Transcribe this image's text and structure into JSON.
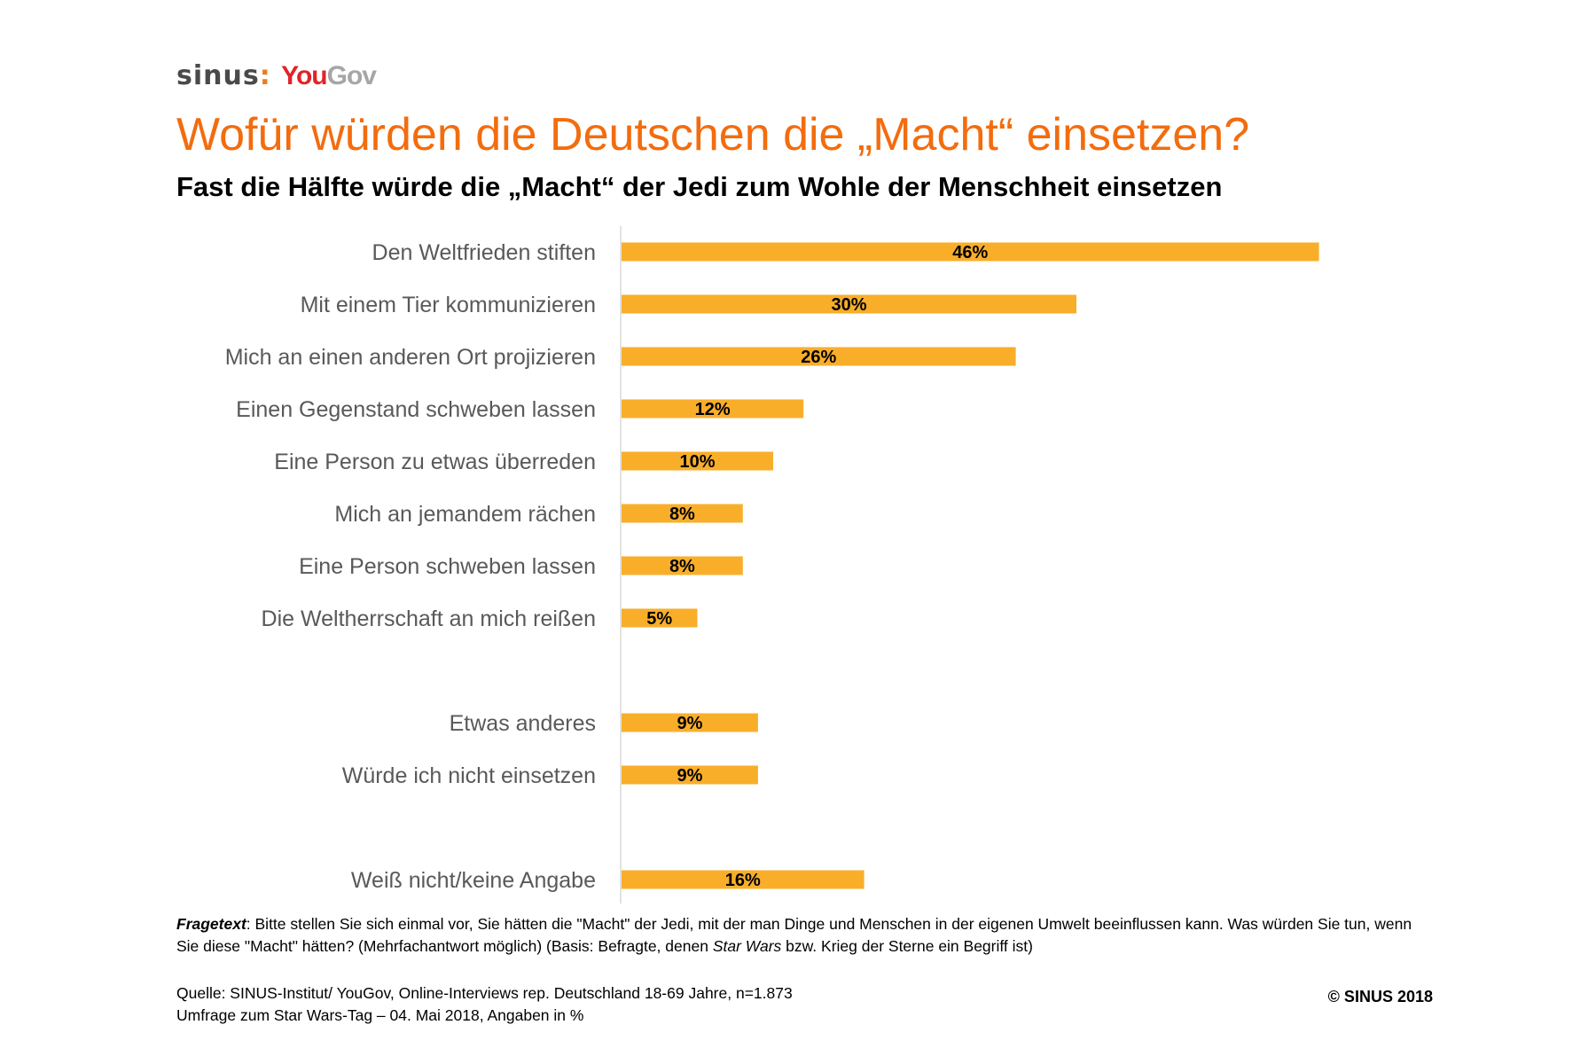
{
  "logo": {
    "sinus": "sinus",
    "you": "You",
    "gov": "Gov"
  },
  "title": "Wofür würden die Deutschen die „Macht“ einsetzen?",
  "subtitle": "Fast die Hälfte würde die „Macht“ der Jedi zum Wohle der Menschheit einsetzen",
  "chart_data": {
    "type": "bar",
    "orientation": "horizontal",
    "categories": [
      "Den Weltfrieden stiften",
      "Mit einem Tier kommunizieren",
      "Mich an einen anderen Ort projizieren",
      "Einen Gegenstand schweben lassen",
      "Eine Person zu etwas überreden",
      "Mich an jemandem rächen",
      "Eine Person schweben lassen",
      "Die Weltherrschaft an mich reißen",
      "Etwas anderes",
      "Würde ich nicht einsetzen",
      "Weiß nicht/keine Angabe"
    ],
    "values": [
      46,
      30,
      26,
      12,
      10,
      8,
      8,
      5,
      9,
      9,
      16
    ],
    "data_labels": [
      "46%",
      "30%",
      "26%",
      "12%",
      "10%",
      "8%",
      "8%",
      "5%",
      "9%",
      "9%",
      "16%"
    ],
    "groups": [
      [
        0,
        1,
        2,
        3,
        4,
        5,
        6,
        7
      ],
      [
        8,
        9
      ],
      [
        10
      ]
    ],
    "unit": "%",
    "bar_color": "#F9AE2A",
    "grid": false
  },
  "footnote": {
    "label": "Fragetext",
    "text1": ": Bitte stellen Sie sich einmal vor, Sie hätten die \"Macht\" der Jedi, mit der man Dinge und Menschen in der eigenen Umwelt beeinflussen kann. Was würden Sie tun, wenn Sie diese \"Macht\" hätten? (Mehrfachantwort möglich) (Basis: Befragte, denen ",
    "italic": "Star Wars",
    "text2": " bzw. Krieg der Sterne ein Begriff ist)"
  },
  "source": {
    "line1": "Quelle: SINUS-Institut/ YouGov, Online-Interviews rep. Deutschland 18-69 Jahre, n=1.873",
    "line2": "Umfrage zum Star Wars-Tag – 04. Mai 2018, Angaben in %"
  },
  "copyright": "© SINUS 2018",
  "colors": {
    "title": "#F36C0E",
    "bar": "#F9AE2A",
    "label": "#595959"
  }
}
